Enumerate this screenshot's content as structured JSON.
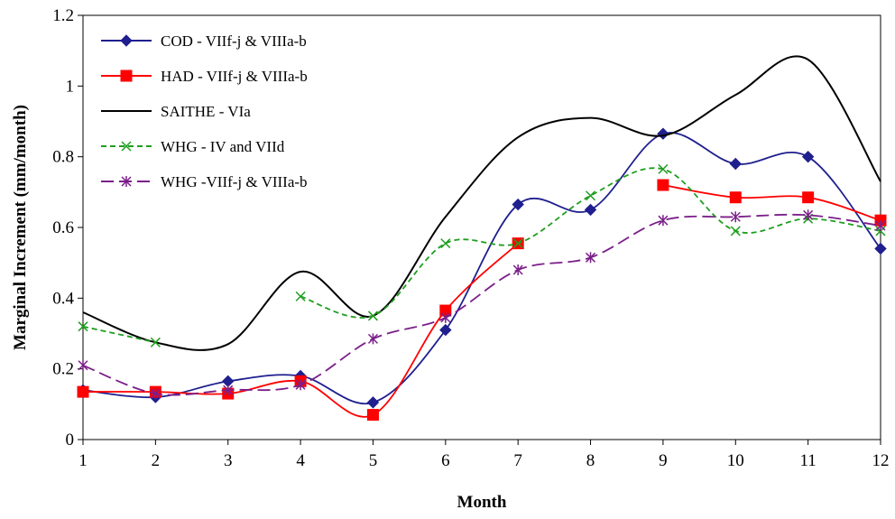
{
  "chart_data": {
    "type": "line",
    "title": "",
    "xlabel": "Month",
    "ylabel": "Marginal Increment (mm/month)",
    "x": [
      1,
      2,
      3,
      4,
      5,
      6,
      7,
      8,
      9,
      10,
      11,
      12
    ],
    "xlim": [
      1,
      12
    ],
    "ylim": [
      0,
      1.2
    ],
    "yticks": [
      "0",
      "0.2",
      "0.4",
      "0.6",
      "0.8",
      "1",
      "1.2"
    ],
    "xticks": [
      "1",
      "2",
      "3",
      "4",
      "5",
      "6",
      "7",
      "8",
      "9",
      "10",
      "11",
      "12"
    ],
    "grid": false,
    "legend_position": "top-left",
    "series": [
      {
        "name": "COD - VIIf-j & VIIIa-b",
        "color": "#1f1f8f",
        "marker": "diamond",
        "dash": "solid",
        "values": [
          0.14,
          0.12,
          0.165,
          0.18,
          0.105,
          0.31,
          0.665,
          0.65,
          0.865,
          0.78,
          0.8,
          0.54
        ]
      },
      {
        "name": "HAD - VIIf-j & VIIIa-b",
        "color": "#ff0000",
        "marker": "square",
        "dash": "solid",
        "values": [
          0.135,
          0.135,
          0.13,
          0.165,
          0.07,
          0.365,
          0.555,
          null,
          0.72,
          0.685,
          0.685,
          0.62
        ]
      },
      {
        "name": "SAITHE - VIa",
        "color": "#000000",
        "marker": "none",
        "dash": "solid",
        "values": [
          0.36,
          0.275,
          0.27,
          0.475,
          0.35,
          0.63,
          0.855,
          0.91,
          0.86,
          0.975,
          1.075,
          0.73
        ]
      },
      {
        "name": "WHG - IV and VIId",
        "color": "#1e9e1e",
        "marker": "x",
        "dash": "dash",
        "values": [
          0.32,
          0.275,
          null,
          0.405,
          0.35,
          0.555,
          0.555,
          0.69,
          0.765,
          0.59,
          0.625,
          0.59
        ]
      },
      {
        "name": "WHG -VIIf-j & VIIIa-b",
        "color": "#7b1f8a",
        "marker": "asterisk",
        "dash": "longdash",
        "values": [
          0.21,
          0.13,
          0.14,
          0.155,
          0.285,
          0.345,
          0.48,
          0.515,
          0.62,
          0.63,
          0.635,
          0.605
        ]
      }
    ]
  }
}
